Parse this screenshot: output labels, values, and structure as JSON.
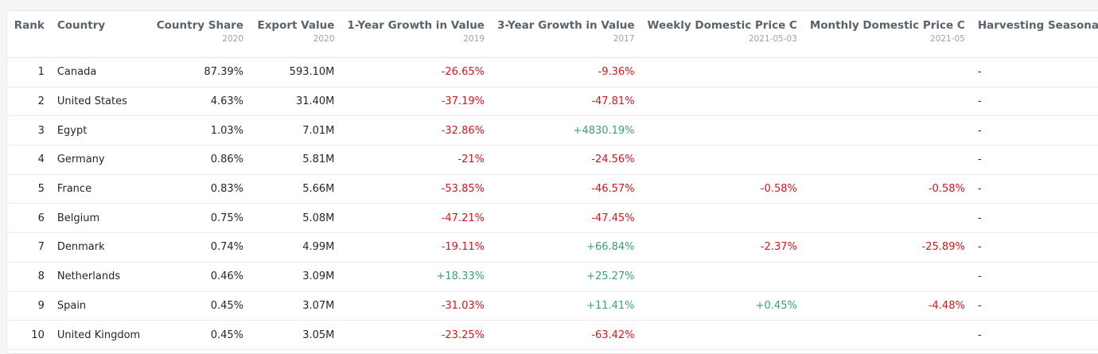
{
  "columns": [
    {
      "label": "Rank",
      "sub": ""
    },
    {
      "label": "Country",
      "sub": ""
    },
    {
      "label": "Country Share",
      "sub": "2020"
    },
    {
      "label": "Export Value",
      "sub": "2020"
    },
    {
      "label": "1-Year Growth in Value",
      "sub": "2019"
    },
    {
      "label": "3-Year Growth in Value",
      "sub": "2017"
    },
    {
      "label": "Weekly Domestic Price C",
      "sub": "2021-05-03"
    },
    {
      "label": "Monthly Domestic Price C",
      "sub": "2021-05"
    },
    {
      "label": "Harvesting Seasona",
      "sub": ""
    }
  ],
  "colors": {
    "negative": "#d8141c",
    "positive": "#3a9e78"
  },
  "rows": [
    [
      "1",
      "Canada",
      "87.39%",
      "593.10M",
      "-26.65%",
      "-9.36%",
      "",
      "",
      "-"
    ],
    [
      "2",
      "United States",
      "4.63%",
      "31.40M",
      "-37.19%",
      "-47.81%",
      "",
      "",
      "-"
    ],
    [
      "3",
      "Egypt",
      "1.03%",
      "7.01M",
      "-32.86%",
      "+4830.19%",
      "",
      "",
      "-"
    ],
    [
      "4",
      "Germany",
      "0.86%",
      "5.81M",
      "-21%",
      "-24.56%",
      "",
      "",
      "-"
    ],
    [
      "5",
      "France",
      "0.83%",
      "5.66M",
      "-53.85%",
      "-46.57%",
      "-0.58%",
      "-0.58%",
      "-"
    ],
    [
      "6",
      "Belgium",
      "0.75%",
      "5.08M",
      "-47.21%",
      "-47.45%",
      "",
      "",
      "-"
    ],
    [
      "7",
      "Denmark",
      "0.74%",
      "4.99M",
      "-19.11%",
      "+66.84%",
      "-2.37%",
      "-25.89%",
      "-"
    ],
    [
      "8",
      "Netherlands",
      "0.46%",
      "3.09M",
      "+18.33%",
      "+25.27%",
      "",
      "",
      "-"
    ],
    [
      "9",
      "Spain",
      "0.45%",
      "3.07M",
      "-31.03%",
      "+11.41%",
      "+0.45%",
      "-4.48%",
      "-"
    ],
    [
      "10",
      "United Kingdom",
      "0.45%",
      "3.05M",
      "-23.25%",
      "-63.42%",
      "",
      "",
      "-"
    ]
  ]
}
